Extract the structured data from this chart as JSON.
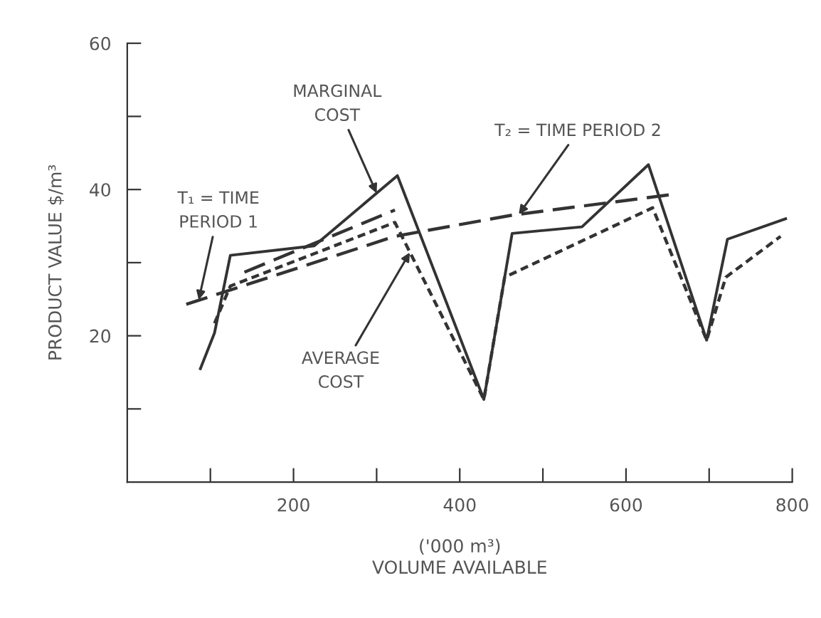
{
  "chart_data": {
    "type": "line",
    "xlabel": "('000 m³)\nVOLUME AVAILABLE",
    "ylabel": "PRODUCT VALUE $/m³",
    "series": [
      {
        "color": "#333333",
        "line_style": "solid",
        "x": [
          88,
          105,
          124,
          225,
          325,
          429,
          463,
          547,
          627,
          697,
          722,
          792
        ],
        "values": [
          15.5,
          20.4,
          31,
          32.3,
          41.9,
          11.3,
          34,
          34.9,
          43.4,
          19.4,
          33.2,
          36
        ]
      },
      {
        "color": "#333333",
        "line_style": "dotted",
        "x": [
          105,
          124,
          322,
          429,
          454,
          632,
          697,
          720,
          786
        ],
        "values": [
          21.7,
          26.8,
          35.5,
          11.3,
          28,
          37.5,
          19.4,
          28,
          33.6
        ]
      },
      {
        "color": "#333333",
        "line_style": "dashed",
        "x": [
          71,
          322,
          463,
          654
        ],
        "values": [
          24.3,
          33.6,
          36.5,
          39.3
        ]
      },
      {
        "color": "#333333",
        "line_style": "dashed",
        "x": [
          141,
          322
        ],
        "values": [
          28.7,
          37.2
        ]
      }
    ],
    "annotations": [
      {
        "text": "MARGINAL\nCOST",
        "x": 300,
        "y": 39.5
      },
      {
        "text": "T₁ = TIME\nPERIOD 1",
        "x": 86,
        "y": 24.9
      },
      {
        "text": "AVERAGE\nCOST",
        "x": 340,
        "y": 31.4
      },
      {
        "text": "T₂ = TIME PERIOD 2",
        "x": 471,
        "y": 36.6
      }
    ],
    "xlim": [
      0,
      800
    ],
    "xticks": [
      {
        "value": 100,
        "label": null
      },
      200,
      {
        "value": 300,
        "label": null
      },
      400,
      {
        "value": 500,
        "label": null
      },
      600,
      {
        "value": 700,
        "label": null
      },
      800
    ],
    "ylim": [
      0,
      60
    ],
    "yticks": [
      {
        "value": 10,
        "label": null
      },
      20,
      {
        "value": 30,
        "label": null
      },
      40,
      {
        "value": 50,
        "label": null
      },
      60
    ],
    "grid": false,
    "legend": false
  }
}
